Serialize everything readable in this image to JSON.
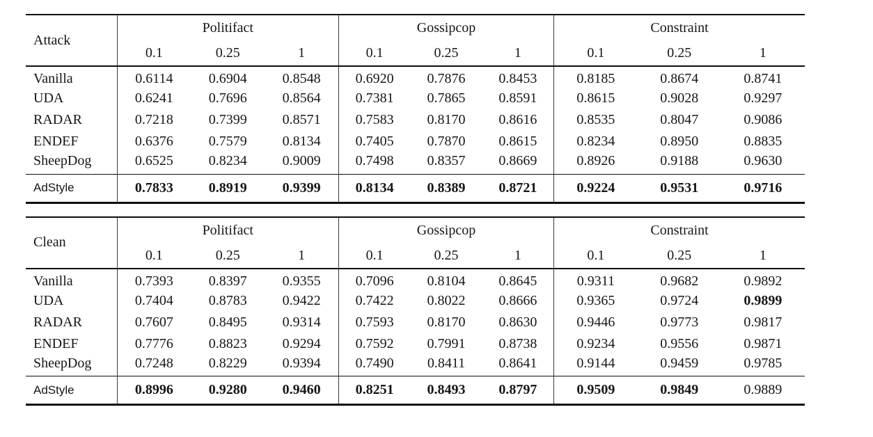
{
  "styles": {
    "text_color": "#161616",
    "rule_color": "#0e0e0e",
    "vline_color": "#3a3a3a",
    "background": "#ffffff"
  },
  "tables": [
    {
      "name": "attack",
      "corner_label": "Attack",
      "groups": [
        {
          "label": "Politifact",
          "sub": [
            "0.1",
            "0.25",
            "1"
          ]
        },
        {
          "label": "Gossipcop",
          "sub": [
            "0.1",
            "0.25",
            "1"
          ]
        },
        {
          "label": "Constraint",
          "sub": [
            "0.1",
            "0.25",
            "1"
          ]
        }
      ],
      "rows": [
        {
          "label": "Vanilla",
          "values": [
            "0.6114",
            "0.6904",
            "0.8548",
            "0.6920",
            "0.7876",
            "0.8453",
            "0.8185",
            "0.8674",
            "0.8741"
          ],
          "bold": []
        },
        {
          "label": "UDA",
          "values": [
            "0.6241",
            "0.7696",
            "0.8564",
            "0.7381",
            "0.7865",
            "0.8591",
            "0.8615",
            "0.9028",
            "0.9297"
          ],
          "bold": []
        },
        {
          "label": "RADAR",
          "values": [
            "0.7218",
            "0.7399",
            "0.8571",
            "0.7583",
            "0.8170",
            "0.8616",
            "0.8535",
            "0.8047",
            "0.9086"
          ],
          "bold": []
        },
        {
          "label": "ENDEF",
          "values": [
            "0.6376",
            "0.7579",
            "0.8134",
            "0.7405",
            "0.7870",
            "0.8615",
            "0.8234",
            "0.8950",
            "0.8835"
          ],
          "bold": []
        },
        {
          "label": "SheepDog",
          "values": [
            "0.6525",
            "0.8234",
            "0.9009",
            "0.7498",
            "0.8357",
            "0.8669",
            "0.8926",
            "0.9188",
            "0.9630"
          ],
          "bold": []
        }
      ],
      "footer": {
        "label": "AdStyle",
        "values": [
          "0.7833",
          "0.8919",
          "0.9399",
          "0.8134",
          "0.8389",
          "0.8721",
          "0.9224",
          "0.9531",
          "0.9716"
        ],
        "bold": [
          0,
          1,
          2,
          3,
          4,
          5,
          6,
          7,
          8
        ]
      }
    },
    {
      "name": "clean",
      "corner_label": "Clean",
      "groups": [
        {
          "label": "Politifact",
          "sub": [
            "0.1",
            "0.25",
            "1"
          ]
        },
        {
          "label": "Gossipcop",
          "sub": [
            "0.1",
            "0.25",
            "1"
          ]
        },
        {
          "label": "Constraint",
          "sub": [
            "0.1",
            "0.25",
            "1"
          ]
        }
      ],
      "rows": [
        {
          "label": "Vanilla",
          "values": [
            "0.7393",
            "0.8397",
            "0.9355",
            "0.7096",
            "0.8104",
            "0.8645",
            "0.9311",
            "0.9682",
            "0.9892"
          ],
          "bold": []
        },
        {
          "label": "UDA",
          "values": [
            "0.7404",
            "0.8783",
            "0.9422",
            "0.7422",
            "0.8022",
            "0.8666",
            "0.9365",
            "0.9724",
            "0.9899"
          ],
          "bold": [
            8
          ]
        },
        {
          "label": "RADAR",
          "values": [
            "0.7607",
            "0.8495",
            "0.9314",
            "0.7593",
            "0.8170",
            "0.8630",
            "0.9446",
            "0.9773",
            "0.9817"
          ],
          "bold": []
        },
        {
          "label": "ENDEF",
          "values": [
            "0.7776",
            "0.8823",
            "0.9294",
            "0.7592",
            "0.7991",
            "0.8738",
            "0.9234",
            "0.9556",
            "0.9871"
          ],
          "bold": []
        },
        {
          "label": "SheepDog",
          "values": [
            "0.7248",
            "0.8229",
            "0.9394",
            "0.7490",
            "0.8411",
            "0.8641",
            "0.9144",
            "0.9459",
            "0.9785"
          ],
          "bold": []
        }
      ],
      "footer": {
        "label": "AdStyle",
        "values": [
          "0.8996",
          "0.9280",
          "0.9460",
          "0.8251",
          "0.8493",
          "0.8797",
          "0.9509",
          "0.9849",
          "0.9889"
        ],
        "bold": [
          0,
          1,
          2,
          3,
          4,
          5,
          6,
          7
        ]
      }
    }
  ]
}
